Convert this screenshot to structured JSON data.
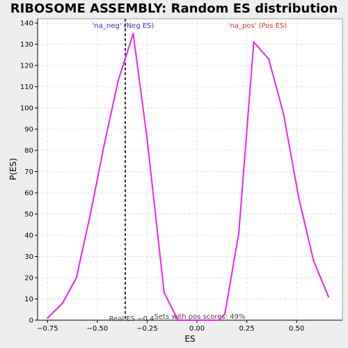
{
  "chart_data": {
    "type": "line",
    "title": "RIBOSOME ASSEMBLY: Random ES distribution",
    "xlabel": "ES",
    "ylabel": "P(ES)",
    "xlim": [
      -0.8,
      0.73
    ],
    "ylim": [
      0,
      142
    ],
    "x_ticks": [
      -0.75,
      -0.5,
      -0.25,
      0.0,
      0.25,
      0.5
    ],
    "x_tick_labels": [
      "−0.75",
      "−0.50",
      "−0.25",
      "0.00",
      "0.25",
      "0.50"
    ],
    "y_ticks": [
      0,
      10,
      20,
      30,
      40,
      50,
      60,
      70,
      80,
      90,
      100,
      110,
      120,
      130,
      140
    ],
    "grid": true,
    "series": [
      {
        "color": "#ee22ee",
        "x": [
          -0.75,
          -0.675,
          -0.605,
          -0.535,
          -0.465,
          -0.395,
          -0.32,
          -0.25,
          -0.165,
          -0.095,
          -0.025,
          0.04,
          0.11,
          0.14,
          0.21,
          0.285,
          0.36,
          0.435,
          0.51,
          0.585,
          0.66
        ],
        "y": [
          1,
          8,
          20,
          50,
          83,
          113,
          135,
          85,
          13,
          0,
          0,
          0,
          0,
          3,
          41,
          131,
          123,
          97,
          58,
          28,
          11
        ]
      }
    ],
    "real_es": -0.36,
    "annotations": {
      "neg": "'na_neg' (Neg ES)",
      "pos": "'na_pos' (Pos ES)",
      "real_es": "Real ES −0.4",
      "pos_scores": "Sets with pos scores: 49%"
    },
    "colors": {
      "neg_label": "#3333cc",
      "pos_label": "#dd3333",
      "line": "#ee22ee",
      "real_es_line": "#333333"
    }
  }
}
